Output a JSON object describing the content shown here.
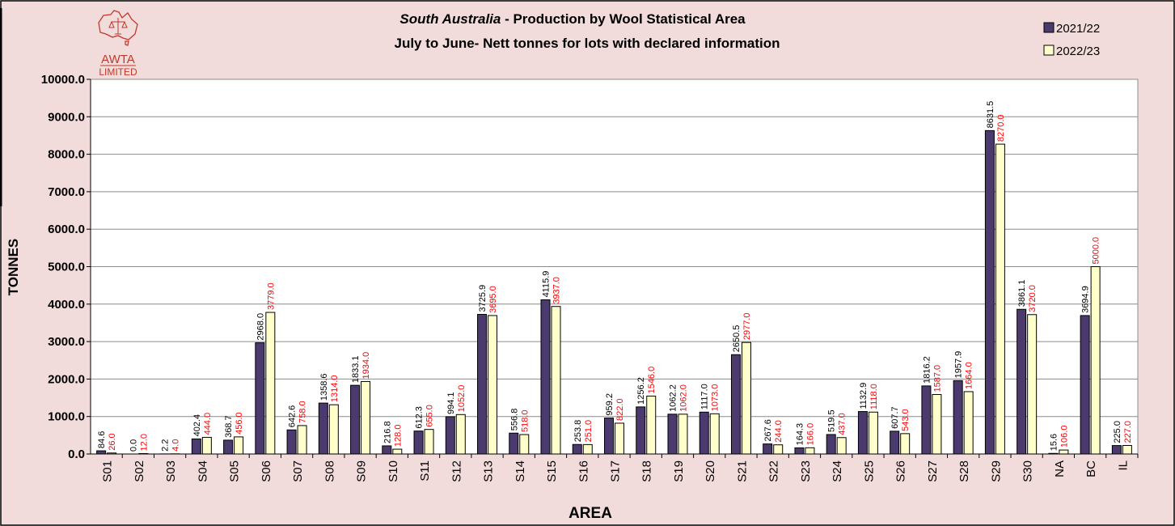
{
  "logo": {
    "line1": "AWTA",
    "line2": "LIMITED"
  },
  "chart_data": {
    "type": "bar",
    "title_italic": "South Australia",
    "title_rest": " - Production by Wool Statistical Area",
    "subtitle": "July to June- Nett tonnes for lots with declared information",
    "xlabel": "AREA",
    "ylabel": "TONNES",
    "ylim": [
      0,
      10000
    ],
    "yticks": [
      "0.0",
      "1000.0",
      "2000.0",
      "3000.0",
      "4000.0",
      "5000.0",
      "6000.0",
      "7000.0",
      "8000.0",
      "9000.0",
      "10000.0"
    ],
    "grid": true,
    "legend_position": "top-right",
    "categories": [
      "S01",
      "S02",
      "S03",
      "S04",
      "S05",
      "S06",
      "S07",
      "S08",
      "S09",
      "S10",
      "S11",
      "S12",
      "S13",
      "S14",
      "S15",
      "S16",
      "S17",
      "S18",
      "S19",
      "S20",
      "S21",
      "S22",
      "S23",
      "S24",
      "S25",
      "S26",
      "S27",
      "S28",
      "S29",
      "S30",
      "NA",
      "BC",
      "IL"
    ],
    "series": [
      {
        "name": "2021/22",
        "color": "#4b3a6e",
        "label_color": "#000000",
        "values": [
          84.6,
          0.0,
          2.2,
          402.4,
          368.7,
          2968.0,
          642.6,
          1358.6,
          1833.1,
          216.8,
          612.3,
          994.1,
          3725.9,
          556.8,
          4115.9,
          253.8,
          959.2,
          1256.2,
          1062.2,
          1117.0,
          2650.5,
          267.6,
          164.3,
          519.5,
          1132.9,
          607.7,
          1816.2,
          1957.9,
          8631.5,
          3861.1,
          15.6,
          3694.9,
          225.0
        ],
        "labels": [
          "84.6",
          "0.0",
          "2.2",
          "402.4",
          "368.7",
          "2968.0",
          "642.6",
          "1358.6",
          "1833.1",
          "216.8",
          "612.3",
          "994.1",
          "3725.9",
          "556.8",
          "4115.9",
          "253.8",
          "959.2",
          "1256.2",
          "1062.2",
          "1117.0",
          "2650.5",
          "267.6",
          "164.3",
          "519.5",
          "1132.9",
          "607.7",
          "1816.2",
          "1957.9",
          "8631.5",
          "3861.1",
          "15.6",
          "3694.9",
          "225.0"
        ]
      },
      {
        "name": "2022/23",
        "color": "#ffffcc",
        "label_color": "#ff0000",
        "values": [
          26.0,
          12.0,
          4.0,
          444.0,
          456.0,
          3779.0,
          758.0,
          1314.0,
          1934.0,
          128.0,
          655.0,
          1052.0,
          3695.0,
          518.0,
          3937.0,
          251.0,
          822.0,
          1546.0,
          1062.0,
          1073.0,
          2977.0,
          244.0,
          166.0,
          437.0,
          1118.0,
          543.0,
          1587.0,
          1664.0,
          8270.0,
          3720.0,
          106.0,
          5000.0,
          227.0
        ],
        "labels": [
          "26.0",
          "12.0",
          "4.0",
          "444.0",
          "456.0",
          "3779.0",
          "758.0",
          "1314.0",
          "1934.0",
          "128.0",
          "655.0",
          "1052.0",
          "3695.0",
          "518.0",
          "3937.0",
          "251.0",
          "822.0",
          "1546.0",
          "1062.0",
          "1073.0",
          "2977.0",
          "244.0",
          "166.0",
          "437.0",
          "1118.0",
          "543.0",
          "1587.0",
          "1664.0",
          "8270.0",
          "3720.0",
          "106.0",
          "5000.0",
          "227.0"
        ]
      }
    ]
  }
}
